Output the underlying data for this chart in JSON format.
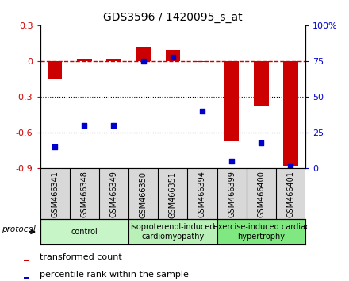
{
  "title": "GDS3596 / 1420095_s_at",
  "samples": [
    "GSM466341",
    "GSM466348",
    "GSM466349",
    "GSM466350",
    "GSM466351",
    "GSM466394",
    "GSM466399",
    "GSM466400",
    "GSM466401"
  ],
  "red_bars": [
    -0.155,
    0.02,
    0.02,
    0.12,
    0.09,
    -0.01,
    -0.67,
    -0.38,
    -0.88
  ],
  "blue_squares": [
    15,
    30,
    30,
    75,
    78,
    40,
    5,
    18,
    2
  ],
  "ylim_left": [
    -0.9,
    0.3
  ],
  "ylim_right": [
    0,
    100
  ],
  "yticks_left": [
    0.3,
    0.0,
    -0.3,
    -0.6,
    -0.9
  ],
  "ytick_labels_left": [
    "0.3",
    "0",
    "-0.3",
    "-0.6",
    "-0.9"
  ],
  "yticks_right": [
    100,
    75,
    50,
    25,
    0
  ],
  "ytick_labels_right": [
    "100%",
    "75",
    "50",
    "25",
    "0"
  ],
  "hline_y": 0.0,
  "dotted_lines": [
    -0.3,
    -0.6
  ],
  "groups": [
    {
      "label": "control",
      "start": 0,
      "end": 3,
      "color": "#c8f5c8"
    },
    {
      "label": "isoproterenol-induced\ncardiomyopathy",
      "start": 3,
      "end": 6,
      "color": "#b8f0b8"
    },
    {
      "label": "exercise-induced cardiac\nhypertrophy",
      "start": 6,
      "end": 9,
      "color": "#80e880"
    }
  ],
  "sample_bg_color": "#d8d8d8",
  "bar_color": "#cc0000",
  "square_color": "#0000cc",
  "bar_width": 0.5,
  "square_size": 25,
  "legend_red_label": "transformed count",
  "legend_blue_label": "percentile rank within the sample",
  "protocol_label": "protocol",
  "left_label_color": "#cc0000",
  "right_label_color": "#0000cc",
  "title_fontsize": 10,
  "tick_fontsize": 8,
  "sample_fontsize": 7,
  "group_fontsize": 7,
  "legend_fontsize": 8
}
